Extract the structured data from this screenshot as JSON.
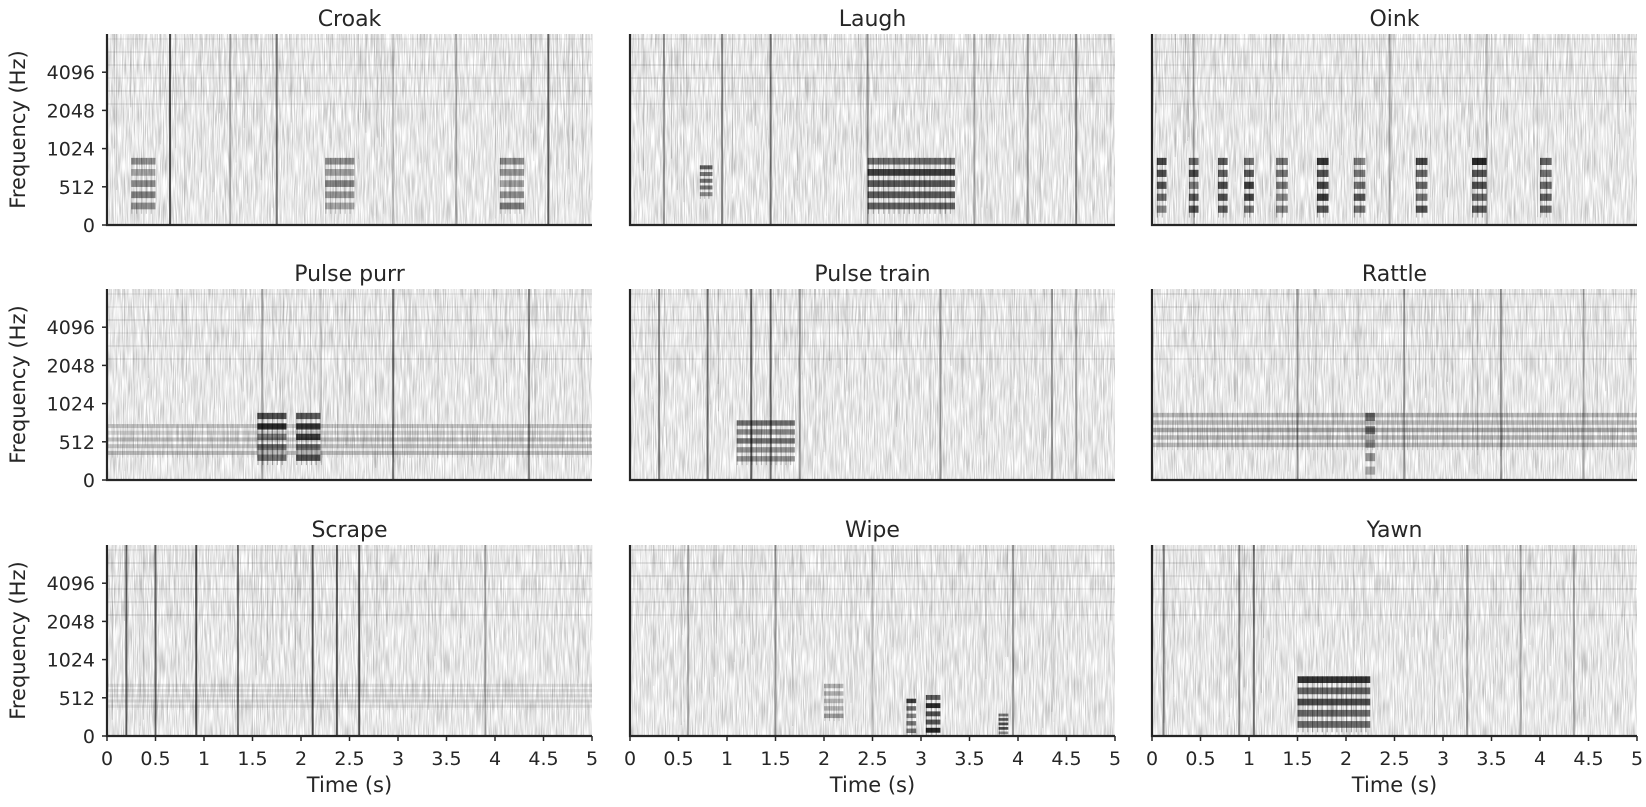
{
  "chart_data": {
    "type": "heatmap",
    "subtype": "spectrogram-grid",
    "grid": {
      "rows": 3,
      "cols": 3
    },
    "colormap": "greys",
    "background_color": "#ffffff",
    "ink_color": "#000000",
    "xlabel": "Time (s)",
    "ylabel": "Frequency (Hz)",
    "xlim": [
      0,
      5
    ],
    "x_ticks": [
      0,
      0.5,
      1,
      1.5,
      2,
      2.5,
      3,
      3.5,
      4,
      4.5,
      5
    ],
    "x_tick_labels": [
      "0",
      "0.5",
      "1",
      "1.5",
      "2",
      "2.5",
      "3",
      "3.5",
      "4",
      "4.5",
      "5"
    ],
    "y_ticks": [
      0,
      512,
      1024,
      2048,
      4096
    ],
    "y_tick_labels": [
      "0",
      "512",
      "1024",
      "2048",
      "4096"
    ],
    "y_range_hz": [
      0,
      8000
    ],
    "panels": [
      {
        "title": "Croak",
        "bursts": [
          [
            0.25,
            0.5,
            150,
            900,
            0.5
          ],
          [
            2.25,
            2.55,
            150,
            900,
            0.5
          ],
          [
            4.05,
            4.3,
            150,
            900,
            0.5
          ]
        ],
        "clicks": [
          [
            0.65,
            0.9
          ],
          [
            1.27,
            0.4
          ],
          [
            1.75,
            0.7
          ],
          [
            2.95,
            0.3
          ],
          [
            3.6,
            0.4
          ],
          [
            4.55,
            0.8
          ]
        ]
      },
      {
        "title": "Laugh",
        "bursts": [
          [
            0.72,
            0.85,
            350,
            800,
            0.6
          ],
          [
            2.45,
            3.35,
            150,
            900,
            0.75
          ]
        ],
        "clicks": [
          [
            0.35,
            0.5
          ],
          [
            0.95,
            0.6
          ],
          [
            1.45,
            0.7
          ],
          [
            2.45,
            0.5
          ],
          [
            3.55,
            0.4
          ],
          [
            4.1,
            0.5
          ],
          [
            4.6,
            0.6
          ]
        ]
      },
      {
        "title": "Oink",
        "bursts": [
          [
            0.05,
            0.15,
            100,
            900,
            0.75
          ],
          [
            0.38,
            0.48,
            100,
            900,
            0.7
          ],
          [
            0.68,
            0.78,
            100,
            900,
            0.7
          ],
          [
            0.95,
            1.05,
            100,
            900,
            0.75
          ],
          [
            1.28,
            1.4,
            100,
            900,
            0.75
          ],
          [
            1.7,
            1.82,
            100,
            900,
            0.8
          ],
          [
            2.08,
            2.2,
            100,
            900,
            0.75
          ],
          [
            2.72,
            2.84,
            100,
            900,
            0.75
          ],
          [
            3.3,
            3.45,
            100,
            900,
            0.85
          ],
          [
            4.0,
            4.12,
            100,
            900,
            0.75
          ]
        ],
        "clicks": [
          [
            0.43,
            0.4
          ],
          [
            2.45,
            0.4
          ],
          [
            3.45,
            0.3
          ]
        ]
      },
      {
        "title": "Pulse purr",
        "bursts": [
          [
            1.55,
            1.85,
            200,
            900,
            0.8
          ],
          [
            1.95,
            2.2,
            200,
            900,
            0.75
          ],
          [
            0.0,
            5.0,
            300,
            750,
            0.25
          ]
        ],
        "clicks": [
          [
            2.95,
            0.7
          ],
          [
            4.35,
            0.6
          ],
          [
            1.6,
            0.4
          ]
        ]
      },
      {
        "title": "Pulse train",
        "bursts": [
          [
            1.1,
            1.7,
            200,
            800,
            0.55
          ]
        ],
        "clicks": [
          [
            0.3,
            0.6
          ],
          [
            0.8,
            0.7
          ],
          [
            1.25,
            0.8
          ],
          [
            1.45,
            0.7
          ],
          [
            1.75,
            0.5
          ],
          [
            3.2,
            0.5
          ],
          [
            4.35,
            0.5
          ],
          [
            4.6,
            0.4
          ]
        ]
      },
      {
        "title": "Rattle",
        "bursts": [
          [
            0.0,
            5.0,
            400,
            900,
            0.35
          ],
          [
            2.2,
            2.3,
            0,
            900,
            0.5
          ]
        ],
        "clicks": [
          [
            1.5,
            0.5
          ],
          [
            2.6,
            0.5
          ],
          [
            3.6,
            0.5
          ],
          [
            4.45,
            0.4
          ]
        ]
      },
      {
        "title": "Scrape",
        "bursts": [
          [
            0.0,
            5.0,
            350,
            700,
            0.12
          ]
        ],
        "clicks": [
          [
            0.2,
            0.8
          ],
          [
            0.5,
            0.8
          ],
          [
            0.92,
            0.9
          ],
          [
            1.35,
            0.7
          ],
          [
            2.12,
            0.9
          ],
          [
            2.37,
            0.85
          ],
          [
            2.6,
            0.9
          ],
          [
            3.9,
            0.4
          ]
        ]
      },
      {
        "title": "Wipe",
        "bursts": [
          [
            2.85,
            2.95,
            0,
            500,
            0.8
          ],
          [
            3.05,
            3.2,
            0,
            550,
            0.85
          ],
          [
            3.8,
            3.9,
            0,
            300,
            0.7
          ],
          [
            2.0,
            2.2,
            200,
            700,
            0.4
          ]
        ],
        "clicks": [
          [
            0.6,
            0.4
          ],
          [
            1.5,
            0.5
          ],
          [
            2.5,
            0.3
          ],
          [
            3.95,
            0.5
          ]
        ]
      },
      {
        "title": "Yawn",
        "bursts": [
          [
            1.5,
            2.25,
            50,
            800,
            0.9
          ]
        ],
        "clicks": [
          [
            0.12,
            0.6
          ],
          [
            0.9,
            0.6
          ],
          [
            1.05,
            0.7
          ],
          [
            3.25,
            0.5
          ],
          [
            3.8,
            0.4
          ],
          [
            4.35,
            0.4
          ]
        ]
      }
    ]
  }
}
